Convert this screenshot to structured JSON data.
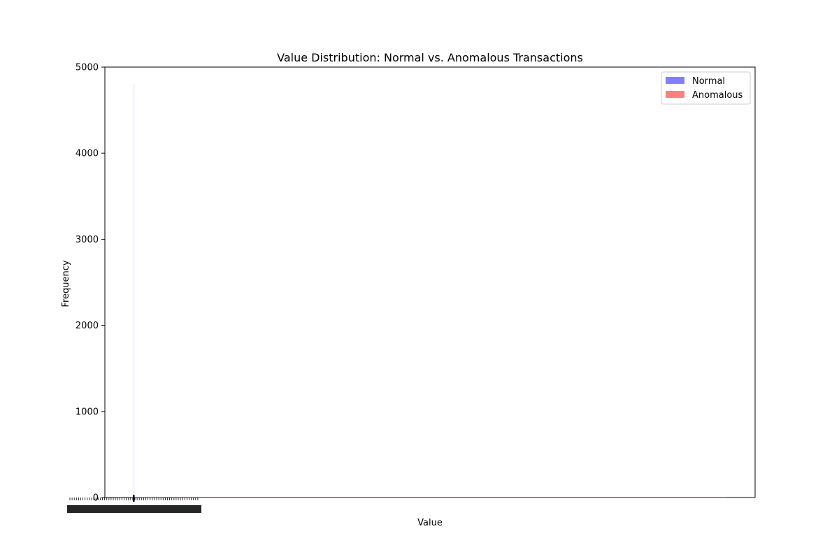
{
  "chart_data": {
    "type": "bar",
    "title": "Value Distribution: Normal vs. Anomalous Transactions",
    "xlabel": "Value",
    "ylabel": "Frequency",
    "ylim": [
      0,
      5000
    ],
    "y_ticks": [
      0,
      1000,
      2000,
      3000,
      4000,
      5000
    ],
    "legend": {
      "placement": "top-right",
      "entries": [
        {
          "name": "Normal",
          "color": "#0000ff",
          "opacity": 0.5
        },
        {
          "name": "Anomalous",
          "color": "#ff0000",
          "opacity": 0.5
        }
      ]
    },
    "grid": false,
    "series": [
      {
        "name": "Normal",
        "color": "#0000ff",
        "bins": [
          {
            "x": 0,
            "value": 4800
          }
        ]
      },
      {
        "name": "Anomalous",
        "color": "#ff0000",
        "bins": [
          {
            "x": 0,
            "value": 5
          }
        ]
      }
    ]
  }
}
